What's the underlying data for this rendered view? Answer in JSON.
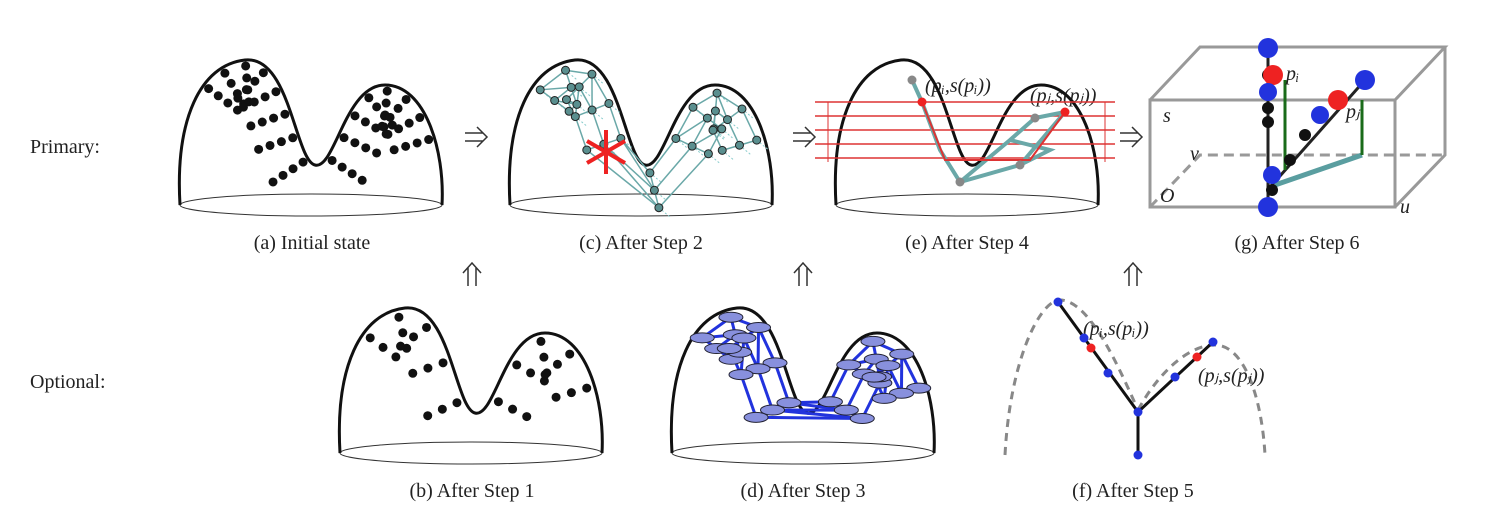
{
  "rows": {
    "primary": "Primary:",
    "optional": "Optional:"
  },
  "panels": [
    {
      "caption": "(a) Initial state"
    },
    {
      "caption": "(b) After Step 1"
    },
    {
      "caption": "(c) After Step 2"
    },
    {
      "caption": "(d) After Step 3"
    },
    {
      "caption": "(e) After Step 4",
      "annotations": [
        "(pᵢ,s(pᵢ))",
        "(pⱼ,s(pⱼ))"
      ]
    },
    {
      "caption": "(f) After Step 5",
      "annotations": [
        "(pᵢ,s(pᵢ))",
        "(pⱼ,s(pⱼ))"
      ]
    },
    {
      "caption": "(g) After Step 6",
      "annotations": [
        "s",
        "v",
        "O",
        "u",
        "pᵢ",
        "pⱼ"
      ]
    }
  ]
}
